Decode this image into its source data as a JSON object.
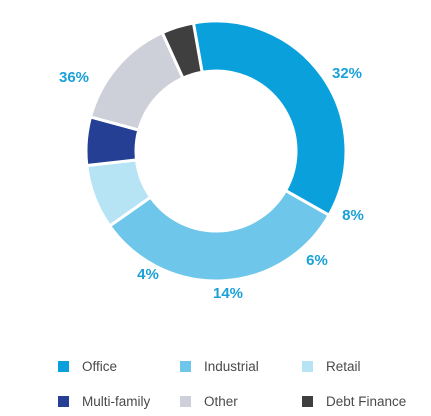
{
  "chart_data": {
    "type": "pie",
    "style": "donut",
    "categories": [
      "Office",
      "Industrial",
      "Retail",
      "Multi-family",
      "Other",
      "Debt Finance"
    ],
    "values": [
      36,
      32,
      8,
      6,
      14,
      4
    ],
    "value_labels": [
      "36%",
      "32%",
      "8%",
      "6%",
      "14%",
      "4%"
    ],
    "colors": [
      "#0aa0dc",
      "#6ec6ea",
      "#b6e4f5",
      "#243f93",
      "#cdcfd9",
      "#3f3f3f"
    ],
    "label_color": "#1ba1d8",
    "legend": {
      "placement": "bottom",
      "entries": [
        "Office",
        "Industrial",
        "Retail",
        "Multi-family",
        "Other",
        "Debt Finance"
      ]
    }
  }
}
